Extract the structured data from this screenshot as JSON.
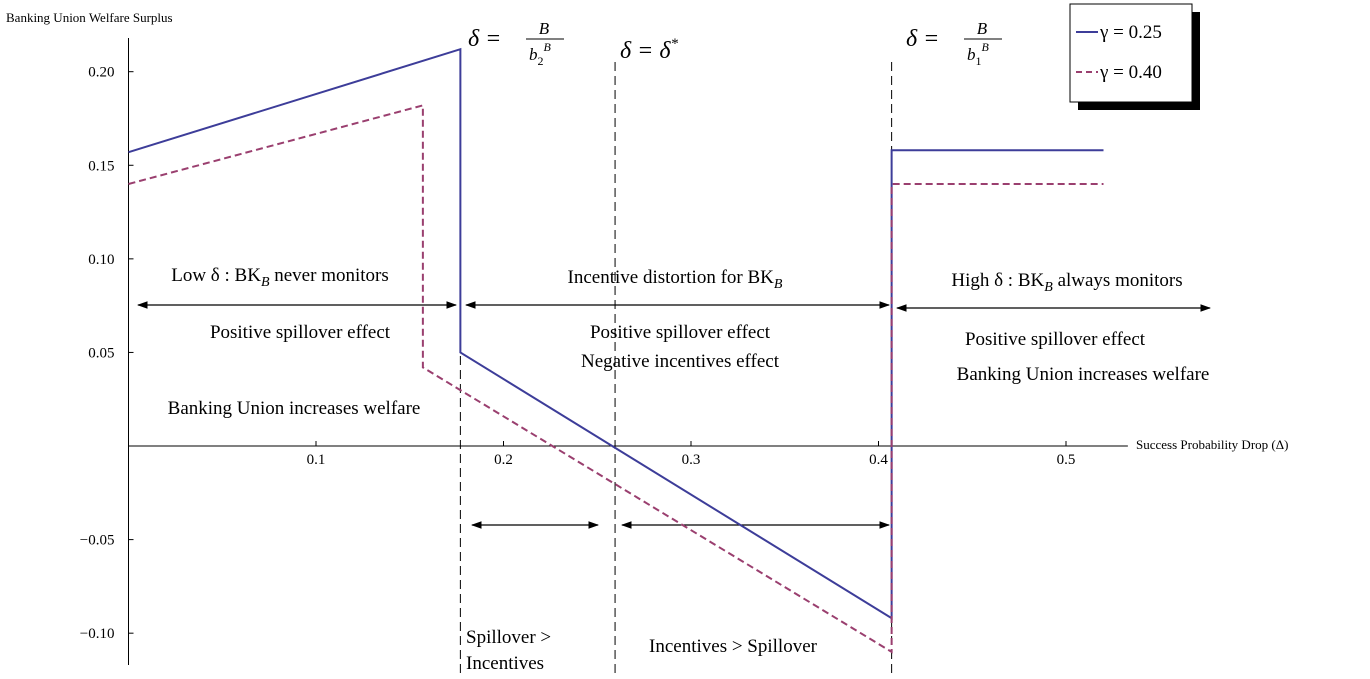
{
  "chart_data": {
    "type": "line",
    "y_label": "Banking Union Welfare Surplus",
    "x_label": "Success Probability Drop (Δ)",
    "xlim": [
      0,
      0.533
    ],
    "ylim": [
      -0.117,
      0.218
    ],
    "xticks": [
      0.1,
      0.2,
      0.3,
      0.4,
      0.5
    ],
    "yticks": [
      {
        "value": -0.1,
        "label": "−0.10"
      },
      {
        "value": -0.05,
        "label": "−0.05"
      },
      0.05,
      {
        "value": 0.1,
        "label": "0.10"
      },
      0.15,
      {
        "value": 0.2,
        "label": "0.20"
      }
    ],
    "series": [
      {
        "name": "γ = 0.25",
        "color": "#3d3d99",
        "dash": false,
        "x": [
          0,
          0.177,
          0.177,
          0.407,
          0.407,
          0.52
        ],
        "values": [
          0.157,
          0.212,
          0.05,
          -0.092,
          0.158,
          0.158
        ]
      },
      {
        "name": "γ = 0.40",
        "color": "#9a3f6f",
        "dash": true,
        "x": [
          0,
          0.157,
          0.157,
          0.407,
          0.407,
          0.52
        ],
        "values": [
          0.14,
          0.182,
          0.042,
          -0.11,
          0.14,
          0.14
        ]
      }
    ],
    "vlines": [
      0.177,
      0.2595,
      0.407
    ],
    "fractions": [
      {
        "lhs": "δ =",
        "num": "B",
        "den": "b",
        "den_sub": "2",
        "den_sup": "B"
      },
      {
        "lhs": "δ =",
        "num": "B",
        "den": "b",
        "den_sub": "1",
        "den_sup": "B"
      }
    ],
    "annotations": [
      [
        "δ = δ",
        "*"
      ],
      [
        "Low δ : BK",
        "B",
        " never monitors"
      ],
      [
        "Positive spillover effect"
      ],
      [
        "Banking Union increases welfare"
      ],
      [
        "Incentive distortion for BK",
        "B"
      ],
      [
        "Positive spillover effect"
      ],
      [
        "Negative incentives effect"
      ],
      [
        "High δ : BK",
        "B",
        " always monitors"
      ],
      [
        "Positive spillover effect"
      ],
      [
        "Banking Union increases welfare"
      ],
      [
        "Spillover >"
      ],
      [
        "Incentives"
      ],
      [
        "Incentives > Spillover"
      ]
    ]
  }
}
